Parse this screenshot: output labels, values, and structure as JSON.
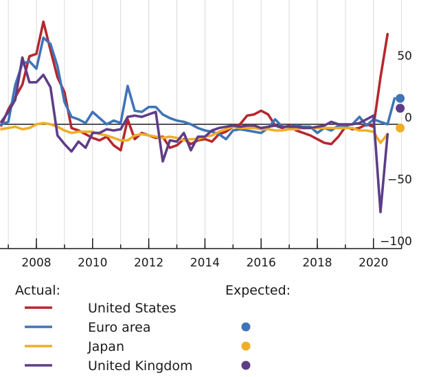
{
  "chart_data": {
    "type": "line",
    "x_range": [
      2006.75,
      2021.4
    ],
    "ylim": [
      -100,
      100
    ],
    "y_ticks": [
      50,
      0,
      -50,
      -100
    ],
    "y_tick_labels": [
      "50",
      "0",
      "−50",
      "−100"
    ],
    "x_ticks": [
      2008,
      2010,
      2012,
      2014,
      2016,
      2018,
      2020
    ],
    "x_tick_labels": [
      "2008",
      "2010",
      "2012",
      "2014",
      "2016",
      "2018",
      "2020"
    ],
    "grid": "vertical",
    "zero_line": true,
    "legend_placement": "bottom",
    "legend": {
      "actual_title": "Actual:",
      "expected_title": "Expected:"
    },
    "series": [
      {
        "name": "United States",
        "color": "#b5282e",
        "values": [
          [
            2006.75,
            -1
          ],
          [
            2007.0,
            12
          ],
          [
            2007.25,
            22
          ],
          [
            2007.5,
            32
          ],
          [
            2007.75,
            55
          ],
          [
            2008.0,
            57
          ],
          [
            2008.25,
            83
          ],
          [
            2008.5,
            60
          ],
          [
            2008.75,
            38
          ],
          [
            2009.0,
            26
          ],
          [
            2009.25,
            -3
          ],
          [
            2009.5,
            -5
          ],
          [
            2009.75,
            -8
          ],
          [
            2010.0,
            -11
          ],
          [
            2010.25,
            -13
          ],
          [
            2010.5,
            -10
          ],
          [
            2010.75,
            -17
          ],
          [
            2011.0,
            -21
          ],
          [
            2011.25,
            4
          ],
          [
            2011.5,
            -12
          ],
          [
            2011.75,
            -7
          ],
          [
            2012.0,
            -9
          ],
          [
            2012.25,
            -11
          ],
          [
            2012.5,
            -10
          ],
          [
            2012.75,
            -19
          ],
          [
            2013.0,
            -17
          ],
          [
            2013.25,
            -12
          ],
          [
            2013.5,
            -16
          ],
          [
            2013.75,
            -13
          ],
          [
            2014.0,
            -12
          ],
          [
            2014.25,
            -14
          ],
          [
            2014.5,
            -8
          ],
          [
            2014.75,
            -6
          ],
          [
            2015.0,
            -2
          ],
          [
            2015.25,
            0
          ],
          [
            2015.5,
            7
          ],
          [
            2015.75,
            8
          ],
          [
            2016.0,
            11
          ],
          [
            2016.25,
            8
          ],
          [
            2016.5,
            -1
          ],
          [
            2016.75,
            -3
          ],
          [
            2017.0,
            -1
          ],
          [
            2017.25,
            -5
          ],
          [
            2017.5,
            -7
          ],
          [
            2017.75,
            -9
          ],
          [
            2018.0,
            -12
          ],
          [
            2018.25,
            -15
          ],
          [
            2018.5,
            -16
          ],
          [
            2018.75,
            -10
          ],
          [
            2019.0,
            -2
          ],
          [
            2019.25,
            -4
          ],
          [
            2019.5,
            -3
          ],
          [
            2019.75,
            0
          ],
          [
            2020.0,
            -2
          ],
          [
            2020.25,
            38
          ],
          [
            2020.5,
            73
          ]
        ]
      },
      {
        "name": "Euro area",
        "color": "#3f74b6",
        "values": [
          [
            2006.75,
            0
          ],
          [
            2007.0,
            2
          ],
          [
            2007.25,
            32
          ],
          [
            2007.5,
            49
          ],
          [
            2007.75,
            51
          ],
          [
            2008.0,
            45
          ],
          [
            2008.25,
            70
          ],
          [
            2008.5,
            65
          ],
          [
            2008.75,
            47
          ],
          [
            2009.0,
            18
          ],
          [
            2009.25,
            6
          ],
          [
            2009.5,
            4
          ],
          [
            2009.75,
            1
          ],
          [
            2010.0,
            10
          ],
          [
            2010.25,
            5
          ],
          [
            2010.5,
            0
          ],
          [
            2010.75,
            3
          ],
          [
            2011.0,
            1
          ],
          [
            2011.25,
            31
          ],
          [
            2011.5,
            11
          ],
          [
            2011.75,
            10
          ],
          [
            2012.0,
            14
          ],
          [
            2012.25,
            14
          ],
          [
            2012.5,
            8
          ],
          [
            2012.75,
            5
          ],
          [
            2013.0,
            3
          ],
          [
            2013.25,
            2
          ],
          [
            2013.5,
            0
          ],
          [
            2013.75,
            -3
          ],
          [
            2014.0,
            -5
          ],
          [
            2014.25,
            -6
          ],
          [
            2014.5,
            -8
          ],
          [
            2014.75,
            -12
          ],
          [
            2015.0,
            -5
          ],
          [
            2015.25,
            -4
          ],
          [
            2015.5,
            -5
          ],
          [
            2015.75,
            -6
          ],
          [
            2016.0,
            -7
          ],
          [
            2016.25,
            -3
          ],
          [
            2016.5,
            4
          ],
          [
            2016.75,
            -2
          ],
          [
            2017.0,
            -2
          ],
          [
            2017.25,
            -1
          ],
          [
            2017.5,
            -2
          ],
          [
            2017.75,
            -2
          ],
          [
            2018.0,
            -7
          ],
          [
            2018.25,
            -3
          ],
          [
            2018.5,
            -5
          ],
          [
            2018.75,
            -1
          ],
          [
            2019.0,
            -1
          ],
          [
            2019.25,
            0
          ],
          [
            2019.5,
            6
          ],
          [
            2019.75,
            -1
          ],
          [
            2020.0,
            4
          ],
          [
            2020.25,
            2
          ],
          [
            2020.5,
            0
          ],
          [
            2020.75,
            21
          ]
        ]
      },
      {
        "name": "Japan",
        "color": "#eeae28",
        "values": [
          [
            2006.75,
            -4
          ],
          [
            2007.0,
            -3
          ],
          [
            2007.25,
            -2
          ],
          [
            2007.5,
            -4
          ],
          [
            2007.75,
            -3
          ],
          [
            2008.0,
            0
          ],
          [
            2008.25,
            1
          ],
          [
            2008.5,
            0
          ],
          [
            2008.75,
            -2
          ],
          [
            2009.0,
            -5
          ],
          [
            2009.25,
            -7
          ],
          [
            2009.5,
            -6
          ],
          [
            2009.75,
            -6
          ],
          [
            2010.0,
            -6
          ],
          [
            2010.25,
            -8
          ],
          [
            2010.5,
            -9
          ],
          [
            2010.75,
            -11
          ],
          [
            2011.0,
            -13
          ],
          [
            2011.25,
            -13
          ],
          [
            2011.5,
            -9
          ],
          [
            2011.75,
            -8
          ],
          [
            2012.0,
            -9
          ],
          [
            2012.25,
            -10
          ],
          [
            2012.5,
            -11
          ],
          [
            2012.75,
            -10
          ],
          [
            2013.0,
            -11
          ],
          [
            2013.25,
            -13
          ],
          [
            2013.5,
            -12
          ],
          [
            2013.75,
            -12
          ],
          [
            2014.0,
            -10
          ],
          [
            2014.25,
            -9
          ],
          [
            2014.5,
            -6
          ],
          [
            2014.75,
            -4
          ],
          [
            2015.0,
            -2
          ],
          [
            2015.25,
            -3
          ],
          [
            2015.5,
            -3
          ],
          [
            2015.75,
            -3
          ],
          [
            2016.0,
            -4
          ],
          [
            2016.25,
            -4
          ],
          [
            2016.5,
            -5
          ],
          [
            2016.75,
            -5
          ],
          [
            2017.0,
            -4
          ],
          [
            2017.25,
            -4
          ],
          [
            2017.5,
            -3
          ],
          [
            2017.75,
            -3
          ],
          [
            2018.0,
            -3
          ],
          [
            2018.25,
            -3
          ],
          [
            2018.5,
            -3
          ],
          [
            2018.75,
            -3
          ],
          [
            2019.0,
            -3
          ],
          [
            2019.25,
            -3
          ],
          [
            2019.5,
            -5
          ],
          [
            2019.75,
            -5
          ],
          [
            2020.0,
            -6
          ],
          [
            2020.25,
            -15
          ],
          [
            2020.5,
            -8
          ]
        ]
      },
      {
        "name": "United Kingdom",
        "color": "#5e3d87",
        "values": [
          [
            2006.75,
            2
          ],
          [
            2007.0,
            10
          ],
          [
            2007.25,
            20
          ],
          [
            2007.5,
            54
          ],
          [
            2007.75,
            34
          ],
          [
            2008.0,
            34
          ],
          [
            2008.25,
            40
          ],
          [
            2008.5,
            30
          ],
          [
            2008.75,
            -9
          ],
          [
            2009.0,
            -16
          ],
          [
            2009.25,
            -22
          ],
          [
            2009.5,
            -14
          ],
          [
            2009.75,
            -19
          ],
          [
            2010.0,
            -7
          ],
          [
            2010.25,
            -7
          ],
          [
            2010.5,
            -4
          ],
          [
            2010.75,
            -5
          ],
          [
            2011.0,
            -4
          ],
          [
            2011.25,
            6
          ],
          [
            2011.5,
            7
          ],
          [
            2011.75,
            6
          ],
          [
            2012.0,
            8
          ],
          [
            2012.25,
            10
          ],
          [
            2012.5,
            -30
          ],
          [
            2012.75,
            -13
          ],
          [
            2013.0,
            -14
          ],
          [
            2013.25,
            -7
          ],
          [
            2013.5,
            -21
          ],
          [
            2013.75,
            -10
          ],
          [
            2014.0,
            -10
          ],
          [
            2014.25,
            -5
          ],
          [
            2014.5,
            -3
          ],
          [
            2014.75,
            -2
          ],
          [
            2015.0,
            -1
          ],
          [
            2015.25,
            -2
          ],
          [
            2015.5,
            -1
          ],
          [
            2015.75,
            -1
          ],
          [
            2016.0,
            -3
          ],
          [
            2016.25,
            -2
          ],
          [
            2016.5,
            -1
          ],
          [
            2016.75,
            -2
          ],
          [
            2017.0,
            -2
          ],
          [
            2017.25,
            -2
          ],
          [
            2017.5,
            -3
          ],
          [
            2017.75,
            -3
          ],
          [
            2018.0,
            -2
          ],
          [
            2018.25,
            -1
          ],
          [
            2018.5,
            2
          ],
          [
            2018.75,
            0
          ],
          [
            2019.0,
            0
          ],
          [
            2019.25,
            0
          ],
          [
            2019.5,
            1
          ],
          [
            2019.75,
            4
          ],
          [
            2020.0,
            7
          ],
          [
            2020.25,
            -71
          ],
          [
            2020.5,
            -8
          ]
        ]
      }
    ],
    "expected_points": [
      {
        "name": "Euro area",
        "color": "#3f74b6",
        "x": 2020.95,
        "y": 21
      },
      {
        "name": "Japan",
        "color": "#eeae28",
        "x": 2020.95,
        "y": -3
      },
      {
        "name": "United Kingdom",
        "color": "#5e3d87",
        "x": 2020.95,
        "y": 13
      }
    ]
  }
}
